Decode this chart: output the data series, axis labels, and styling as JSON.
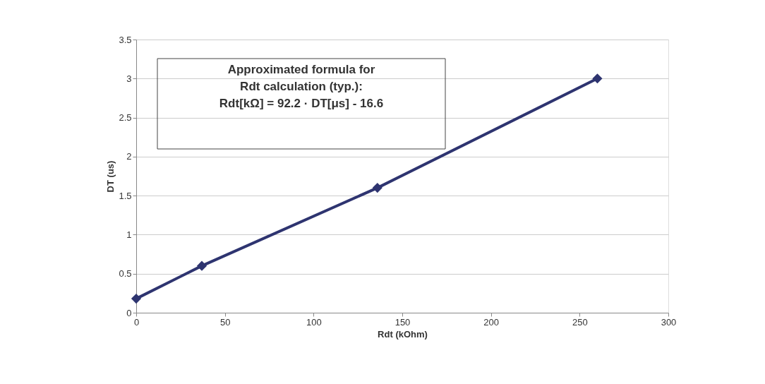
{
  "chart_data": {
    "type": "line",
    "xlabel": "Rdt (kOhm)",
    "ylabel": "DT (us)",
    "x": [
      0,
      37,
      136,
      260
    ],
    "series": [
      {
        "color": "#2e3470",
        "values": [
          0.18,
          0.6,
          1.6,
          3.0
        ]
      }
    ],
    "xlim": [
      0,
      300
    ],
    "xticks": [
      0,
      50,
      100,
      150,
      200,
      250,
      300
    ],
    "ylim": [
      0,
      3.5
    ],
    "yticks": [
      0,
      0.5,
      1,
      1.5,
      2,
      2.5,
      3,
      3.5
    ],
    "grid": "y",
    "marker": "diamond",
    "line_style": "solid",
    "annotations": [
      "Approximated formula for\nRdt calculation (typ.):\n\nRdt[kΩ] = 92.2 · DT[μs] - 16.6"
    ]
  }
}
